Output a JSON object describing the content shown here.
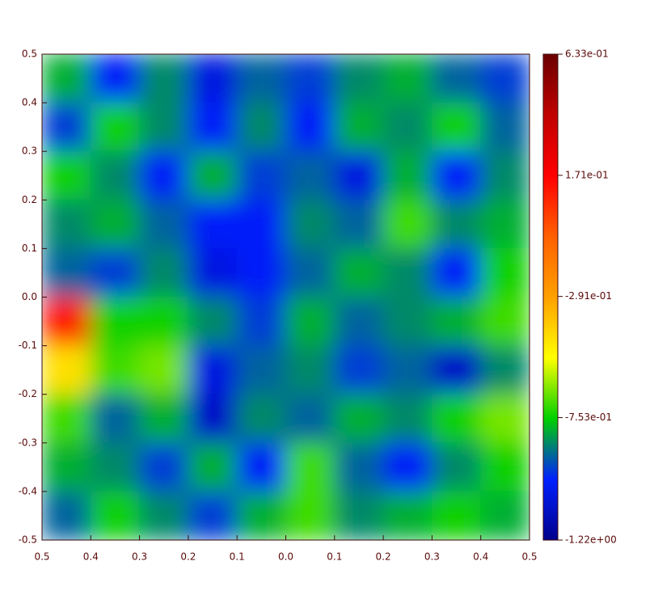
{
  "chart_data": {
    "type": "heatmap",
    "xlim": [
      -0.5,
      0.5
    ],
    "ylim": [
      -0.5,
      0.5
    ],
    "xticks": [
      {
        "value": -0.5,
        "label": "0.5"
      },
      {
        "value": -0.4,
        "label": "0.4"
      },
      {
        "value": -0.3,
        "label": "0.3"
      },
      {
        "value": -0.2,
        "label": "0.2"
      },
      {
        "value": -0.1,
        "label": "0.1"
      },
      {
        "value": 0,
        "label": "0.0"
      },
      0.1,
      0.2,
      0.3,
      0.4,
      0.5
    ],
    "yticks": [
      -0.5,
      -0.4,
      -0.3,
      -0.2,
      -0.1,
      {
        "value": 0,
        "label": "0.0"
      },
      0.1,
      0.2,
      0.3,
      0.4,
      0.5
    ],
    "z": [
      [
        -0.8,
        -1.0,
        -0.85,
        -1.05,
        -0.9,
        -0.95,
        -0.85,
        -0.8,
        -0.9,
        -0.95
      ],
      [
        -0.95,
        -0.75,
        -0.85,
        -1.0,
        -0.85,
        -1.0,
        -0.8,
        -0.85,
        -0.75,
        -0.9
      ],
      [
        -0.75,
        -0.85,
        -1.0,
        -0.8,
        -0.95,
        -0.9,
        -1.05,
        -0.8,
        -1.0,
        -0.85
      ],
      [
        -0.85,
        -0.8,
        -0.9,
        -1.0,
        -1.0,
        -0.85,
        -0.9,
        -0.7,
        -0.85,
        -0.8
      ],
      [
        -0.9,
        -0.95,
        -0.85,
        -1.05,
        -1.0,
        -0.9,
        -0.8,
        -0.85,
        -1.0,
        -0.75
      ],
      [
        0.1,
        -0.75,
        -0.75,
        -0.85,
        -0.95,
        -0.8,
        -0.9,
        -0.85,
        -0.8,
        -0.7
      ],
      [
        -0.45,
        -0.7,
        -0.65,
        -1.05,
        -0.9,
        -0.85,
        -0.95,
        -0.9,
        -1.1,
        -0.85
      ],
      [
        -0.7,
        -0.9,
        -0.8,
        -1.1,
        -0.85,
        -0.9,
        -0.8,
        -0.85,
        -0.75,
        -0.65
      ],
      [
        -0.8,
        -0.85,
        -0.95,
        -0.8,
        -1.0,
        -0.7,
        -0.9,
        -1.0,
        -0.85,
        -0.75
      ],
      [
        -0.9,
        -0.75,
        -0.85,
        -0.95,
        -0.8,
        -0.7,
        -0.85,
        -0.8,
        -0.75,
        -0.8
      ]
    ],
    "clim": [
      -1.22,
      0.633
    ],
    "cticks": [
      {
        "value": -1.22,
        "label": "-1.22e+00"
      },
      {
        "value": -0.753,
        "label": "-7.53e-01"
      },
      {
        "value": -0.291,
        "label": "-2.91e-01"
      },
      {
        "value": 0.171,
        "label": "1.71e-01"
      },
      {
        "value": 0.633,
        "label": "6.33e-01"
      }
    ],
    "colormap": [
      "#00008b",
      "#0020ff",
      "#00d000",
      "#ffff00",
      "#ffa000",
      "#ff6000",
      "#ff0000",
      "#c00000",
      "#6b0000"
    ]
  }
}
